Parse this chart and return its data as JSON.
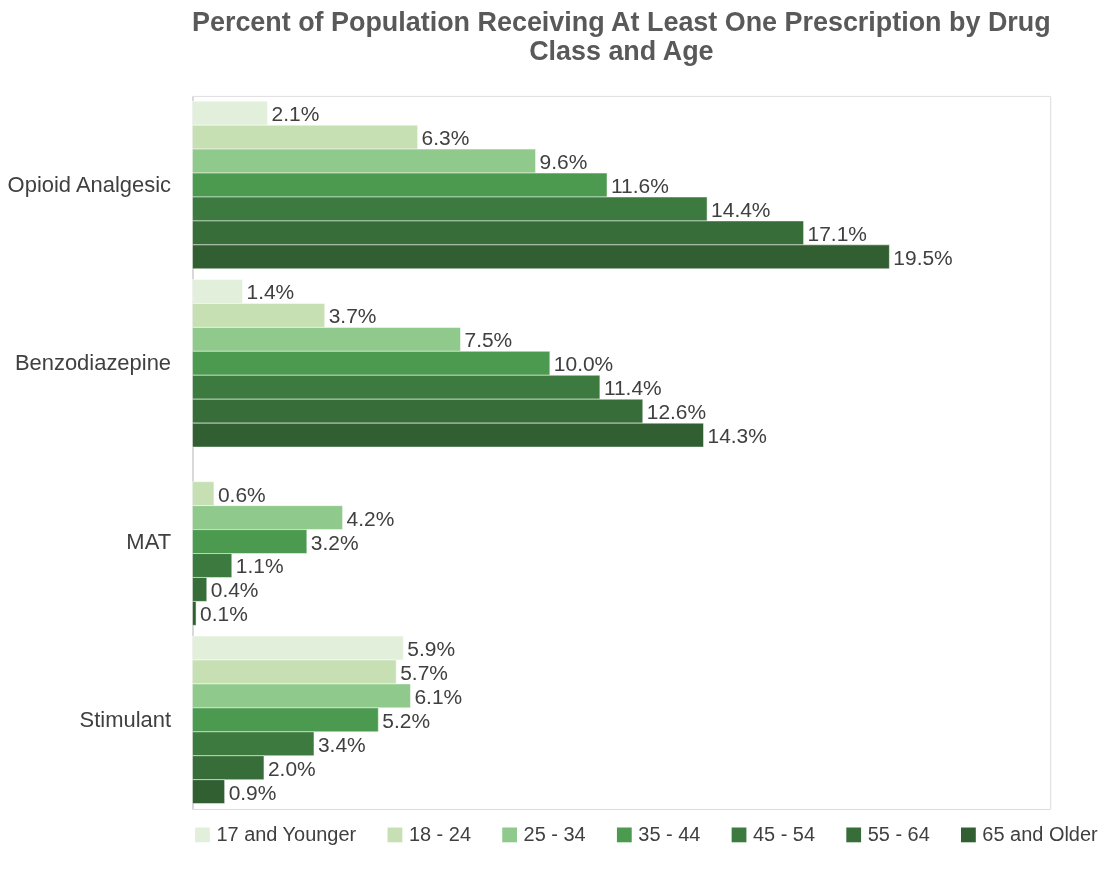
{
  "chart_data": {
    "type": "bar",
    "orientation": "horizontal",
    "title": "Percent of Population Receiving At Least One Prescription by Drug Class and Age",
    "categories": [
      "Opioid Analgesic",
      "Benzodiazepine",
      "MAT",
      "Stimulant"
    ],
    "series": [
      {
        "name": "17 and Younger",
        "color": "#e2efda",
        "values": [
          2.1,
          1.4,
          null,
          5.9
        ],
        "value_labels": [
          "2.1%",
          "1.4%",
          null,
          "5.9%"
        ]
      },
      {
        "name": "18 - 24",
        "color": "#c6e0b4",
        "values": [
          6.3,
          3.7,
          0.6,
          5.7
        ],
        "value_labels": [
          "6.3%",
          "3.7%",
          "0.6%",
          "5.7%"
        ]
      },
      {
        "name": "25 - 34",
        "color": "#8fc98b",
        "values": [
          9.6,
          7.5,
          4.2,
          6.1
        ],
        "value_labels": [
          "9.6%",
          "7.5%",
          "4.2%",
          "6.1%"
        ]
      },
      {
        "name": "35 - 44",
        "color": "#4c9a50",
        "values": [
          11.6,
          10.0,
          3.2,
          5.2
        ],
        "value_labels": [
          "11.6%",
          "10.0%",
          "3.2%",
          "5.2%"
        ]
      },
      {
        "name": "45 - 54",
        "color": "#3d7a3f",
        "values": [
          14.4,
          11.4,
          1.1,
          3.4
        ],
        "value_labels": [
          "14.4%",
          "11.4%",
          "1.1%",
          "3.4%"
        ]
      },
      {
        "name": "55 - 64",
        "color": "#376d39",
        "values": [
          17.1,
          12.6,
          0.4,
          2.0
        ],
        "value_labels": [
          "17.1%",
          "12.6%",
          "0.4%",
          "2.0%"
        ]
      },
      {
        "name": "65 and Older",
        "color": "#315f32",
        "values": [
          19.5,
          14.3,
          0.1,
          0.9
        ],
        "value_labels": [
          "19.5%",
          "14.3%",
          "0.1%",
          "0.9%"
        ]
      }
    ],
    "xlim": [
      0,
      24
    ],
    "tick_labels": "y",
    "legend": "bottom"
  }
}
